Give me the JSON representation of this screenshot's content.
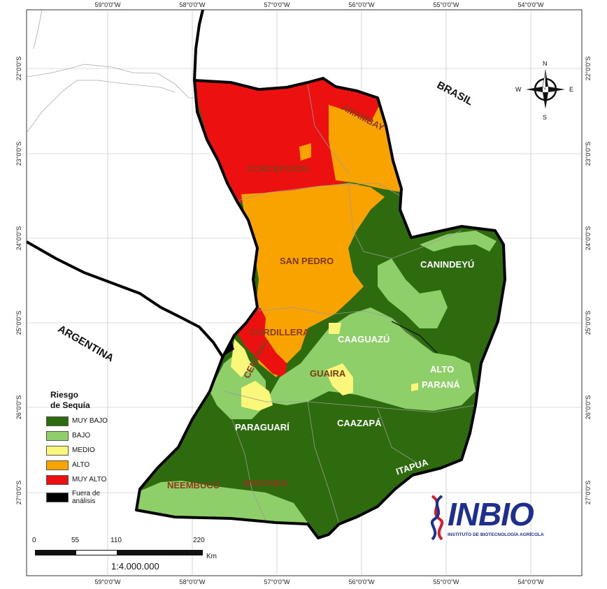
{
  "map": {
    "legend": {
      "title": "Riesgo\nde Sequía",
      "items": [
        {
          "label": "MUY BAJO",
          "color": "#2e6b0f"
        },
        {
          "label": "BAJO",
          "color": "#8fcf6a"
        },
        {
          "label": "MEDIO",
          "color": "#fbf77a"
        },
        {
          "label": "ALTO",
          "color": "#f9a300"
        },
        {
          "label": "MUY ALTO",
          "color": "#ec1010"
        },
        {
          "label": "Fuera de\nanálisis",
          "color": "#000000"
        }
      ]
    },
    "top_ticks": [
      "59°0'0\"W",
      "58°0'0\"W",
      "57°0'0\"W",
      "56°0'0\"W",
      "55°0'0\"W",
      "54°0'0\"W"
    ],
    "bottom_ticks": [
      "59°0'0\"W",
      "58°0'0\"W",
      "57°0'0\"W",
      "56°0'0\"W",
      "55°0'0\"W",
      "54°0'0\"W"
    ],
    "left_ticks": [
      "22°0'0\"S",
      "23°0'0\"S",
      "24°0'0\"S",
      "25°0'0\"S",
      "26°0'0\"S",
      "27°0'0\"S"
    ],
    "right_ticks": [
      "22°0'0\"S",
      "23°0'0\"S",
      "24°0'0\"S",
      "25°0'0\"S",
      "26°0'0\"S",
      "27°0'0\"S"
    ],
    "countries": {
      "brasil": "BRASIL",
      "argentina": "ARGENTINA"
    },
    "regions": {
      "concepcion": "CONCEPCION",
      "amambay": "AMAMBAY",
      "san_pedro": "SAN PEDRO",
      "canindeyu": "CANINDEYÚ",
      "cordillera": "CORDILLERA",
      "caaguazu": "CAAGUAZÚ",
      "central": "CENTRAL",
      "guaira": "GUAIRA",
      "alto_parana_1": "ALTO",
      "alto_parana_2": "PARANÁ",
      "paraguari": "PARAGUARÍ",
      "caazapa": "CAAZAPÁ",
      "itapua": "ITAPUA",
      "neembucu": "ÑEEMBUCÚ",
      "misiones": "MISIONES"
    },
    "compass": {
      "n": "N",
      "s": "S",
      "e": "E",
      "w": "W"
    },
    "scalebar": {
      "ticks": [
        "0",
        "55",
        "110",
        "220"
      ],
      "unit": "Km",
      "ratio": "1:4.000.000"
    },
    "logo": {
      "name": "INBIO",
      "subtitle": "INSTITUTO DE BIOTECNOLOGÍA AGRÍCOLA"
    }
  }
}
